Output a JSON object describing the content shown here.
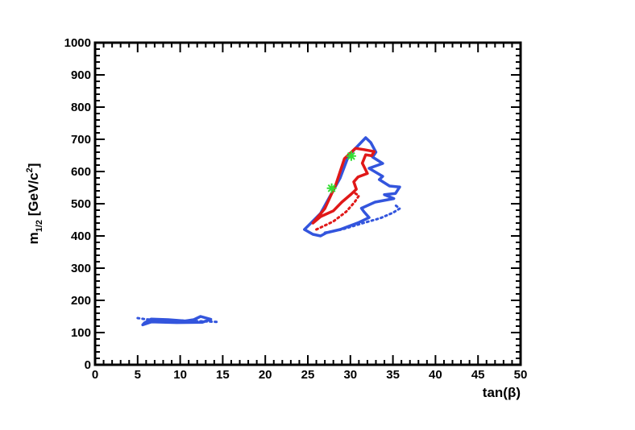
{
  "chart_data": {
    "type": "contour",
    "xlabel": "tan(β)",
    "ylabel": "m₁₂ [GeV/c²]",
    "ylabel_main": "m",
    "ylabel_sub": "1/2",
    "ylabel_rest": " [GeV/c",
    "ylabel_sup": "2",
    "ylabel_end": "]",
    "xlim": [
      0,
      50
    ],
    "ylim": [
      0,
      1000
    ],
    "x_ticks": [
      "0",
      "5",
      "10",
      "15",
      "20",
      "25",
      "30",
      "35",
      "40",
      "45",
      "50"
    ],
    "y_ticks": [
      "0",
      "100",
      "200",
      "300",
      "400",
      "500",
      "600",
      "700",
      "800",
      "900",
      "1000"
    ],
    "grid": false,
    "colors": {
      "blue": "#3355dd",
      "red": "#e01818",
      "green": "#33dd33"
    },
    "series": [
      {
        "color": "blue",
        "style": "solid",
        "points": [
          [
            24.6,
            420
          ],
          [
            26.5,
            470
          ],
          [
            28.8,
            580
          ],
          [
            29.8,
            650
          ],
          [
            31.8,
            705
          ],
          [
            32.4,
            690
          ],
          [
            33.0,
            660
          ],
          [
            32.6,
            645
          ],
          [
            33.8,
            625
          ],
          [
            32.2,
            610
          ],
          [
            33.8,
            585
          ],
          [
            33.4,
            575
          ],
          [
            34.6,
            555
          ],
          [
            35.8,
            552
          ],
          [
            35.3,
            532
          ],
          [
            34.0,
            528
          ],
          [
            35.1,
            516
          ],
          [
            32.9,
            505
          ],
          [
            31.3,
            486
          ],
          [
            31.6,
            475
          ],
          [
            32.2,
            457
          ],
          [
            31.0,
            442
          ],
          [
            28.8,
            420
          ],
          [
            27.2,
            410
          ],
          [
            26.5,
            400
          ],
          [
            25.6,
            405
          ],
          [
            24.6,
            420
          ]
        ]
      },
      {
        "color": "blue",
        "style": "dotted",
        "points": [
          [
            27.0,
            410
          ],
          [
            29.0,
            420
          ],
          [
            31.5,
            440
          ],
          [
            33.5,
            455
          ],
          [
            35.0,
            472
          ],
          [
            35.8,
            485
          ],
          [
            35.3,
            495
          ]
        ]
      },
      {
        "color": "red",
        "style": "solid",
        "points": [
          [
            25.6,
            440
          ],
          [
            27.0,
            485
          ],
          [
            28.3,
            560
          ],
          [
            29.3,
            640
          ],
          [
            30.6,
            672
          ],
          [
            31.6,
            668
          ],
          [
            32.8,
            662
          ],
          [
            32.5,
            649
          ],
          [
            31.8,
            652
          ],
          [
            31.4,
            626
          ],
          [
            32.0,
            594
          ],
          [
            30.9,
            583
          ],
          [
            30.4,
            568
          ],
          [
            30.7,
            545
          ],
          [
            30.1,
            530
          ],
          [
            29.0,
            505
          ],
          [
            28.0,
            478
          ],
          [
            26.5,
            460
          ],
          [
            25.6,
            440
          ]
        ]
      },
      {
        "color": "red",
        "style": "dotted",
        "points": [
          [
            26.0,
            420
          ],
          [
            28.0,
            445
          ],
          [
            29.5,
            475
          ],
          [
            30.5,
            505
          ],
          [
            31.0,
            525
          ],
          [
            30.4,
            535
          ]
        ]
      },
      {
        "color": "blue",
        "style": "solid",
        "points": [
          [
            5.8,
            130
          ],
          [
            6.6,
            142
          ],
          [
            8.6,
            140
          ],
          [
            10.6,
            136
          ],
          [
            11.6,
            140
          ],
          [
            12.4,
            150
          ],
          [
            13.6,
            141
          ],
          [
            12.6,
            132
          ],
          [
            9.6,
            131
          ],
          [
            6.6,
            133
          ],
          [
            5.6,
            124
          ],
          [
            5.8,
            130
          ]
        ]
      },
      {
        "color": "blue",
        "style": "dotted",
        "points": [
          [
            5.0,
            145
          ],
          [
            6.0,
            141
          ],
          [
            13.6,
            134
          ],
          [
            14.5,
            133
          ]
        ]
      }
    ],
    "markers": [
      {
        "x": 27.8,
        "y": 548,
        "color": "green",
        "shape": "star"
      },
      {
        "x": 30.1,
        "y": 648,
        "color": "green",
        "shape": "star"
      }
    ]
  }
}
